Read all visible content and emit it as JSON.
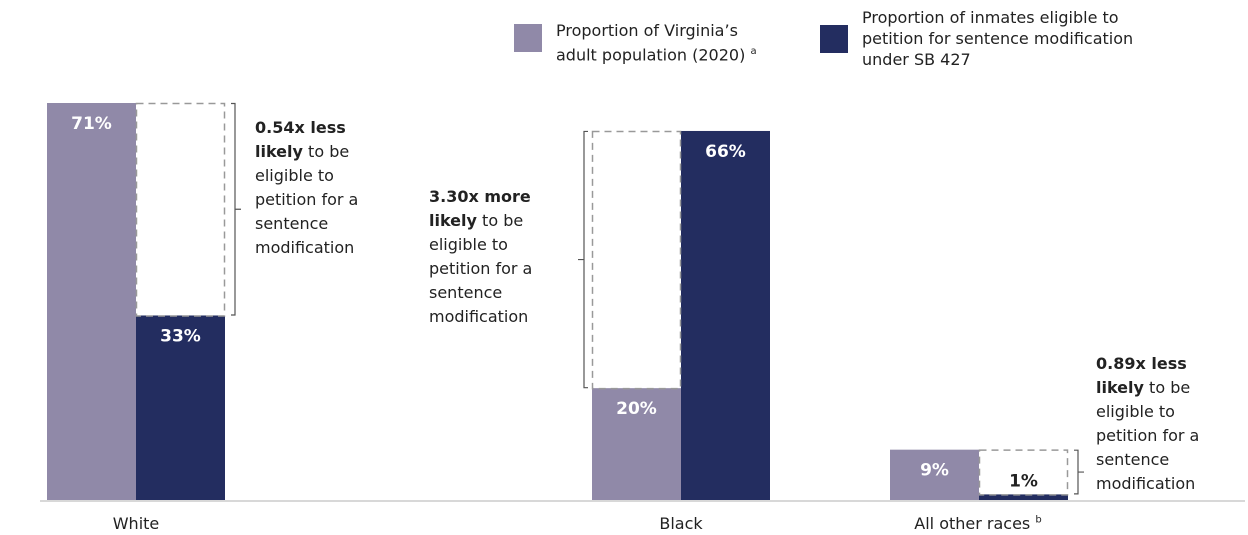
{
  "chart_data": {
    "type": "bar",
    "categories": [
      "White",
      "Black",
      "All other races"
    ],
    "category_footnotes": [
      "",
      "",
      "b"
    ],
    "series": [
      {
        "name": "Proportion of Virginia’s adult population (2020)",
        "footnote": "a",
        "color": "#9089a8",
        "values": [
          71,
          20,
          9
        ],
        "labels": [
          "71%",
          "20%",
          "9%"
        ]
      },
      {
        "name": "Proportion of inmates eligible to petition for sentence modification under SB 427",
        "color": "#232d60",
        "values": [
          33,
          66,
          1
        ],
        "labels": [
          "33%",
          "66%",
          "1%"
        ]
      }
    ],
    "ylim": [
      0,
      71
    ],
    "legend_position": "top-right",
    "annotations": [
      {
        "bold1": "0.54x less",
        "bold2": "likely",
        "rest": [
          "to be",
          "eligible to",
          "petition for a",
          "sentence",
          "modification"
        ]
      },
      {
        "bold1": "3.30x more",
        "bold2": "likely",
        "rest": [
          "to be",
          "eligible to",
          "petition for a",
          "sentence",
          "modification"
        ]
      },
      {
        "bold1": "0.89x less",
        "bold2": "likely",
        "rest": [
          "to be",
          "eligible to",
          "petition for a",
          "sentence",
          "modification"
        ]
      }
    ]
  },
  "legend": {
    "item1": {
      "line1": "Proportion of Virginia’s",
      "line2": "adult population (2020)",
      "sup": "a"
    },
    "item2": {
      "line1": "Proportion of inmates eligible to",
      "line2": "petition for sentence modification",
      "line3": "under SB 427"
    }
  },
  "colors": {
    "population": "#9089a8",
    "inmates": "#232d60",
    "bracket": "#999999",
    "axis": "#cccccc"
  }
}
